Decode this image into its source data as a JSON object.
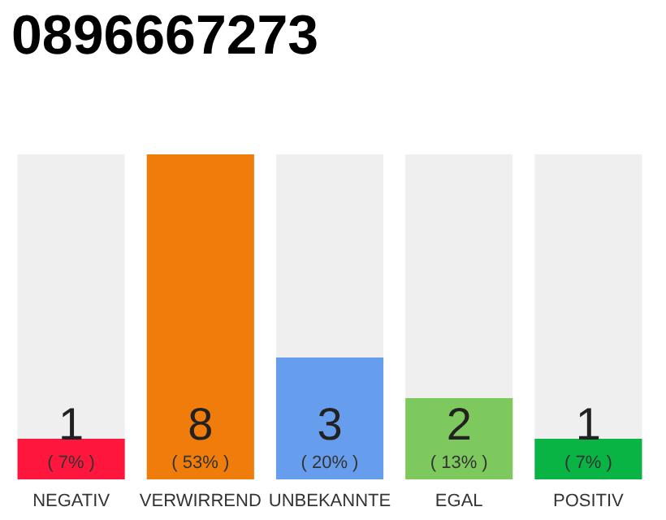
{
  "chart_data": {
    "type": "bar",
    "title": "0896667273",
    "categories": [
      "NEGATIV",
      "VERWIRREND",
      "UNBEKANNTE",
      "EGAL",
      "POSITIV"
    ],
    "values": [
      1,
      8,
      3,
      2,
      1
    ],
    "colors": [
      "#ff163c",
      "#f07c0c",
      "#679ded",
      "#7dc95e",
      "#0ab444"
    ],
    "data_labels": true,
    "annotations": [
      "( 7% )",
      "( 53% )",
      "( 20% )",
      "( 13% )",
      "( 7% )"
    ]
  }
}
